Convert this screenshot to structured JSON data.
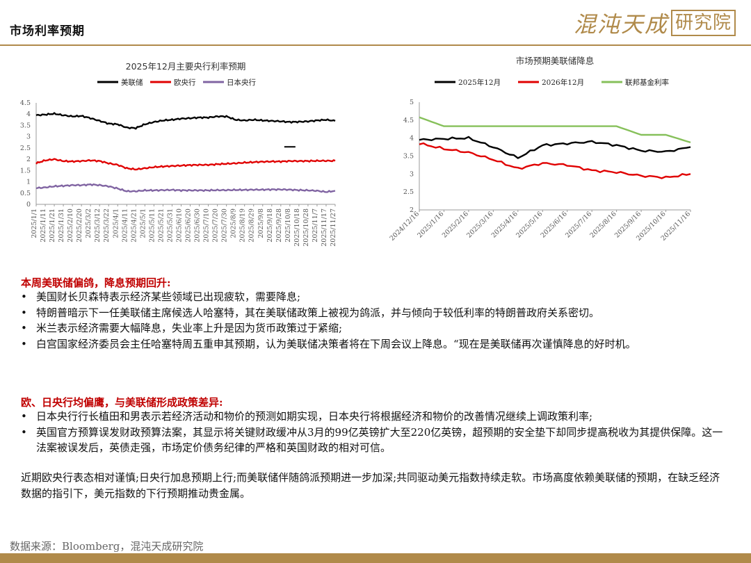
{
  "header": {
    "title": "市场利率预期"
  },
  "logo": {
    "text_script": "混沌天成",
    "text_seal": "研究院"
  },
  "chart_data": [
    {
      "type": "line",
      "title": "2025年12月主要央行利率预期",
      "ylim": [
        0,
        4.5
      ],
      "yticks": [
        "0",
        "0.5",
        "1",
        "1.5",
        "2",
        "2.5",
        "3",
        "3.5",
        "4",
        "4.5"
      ],
      "x": [
        "2025/1/1",
        "2025/1/11",
        "2025/1/21",
        "2025/1/31",
        "2025/2/10",
        "2025/2/20",
        "2025/3/2",
        "2025/3/12",
        "2025/3/22",
        "2025/4/1",
        "2025/4/11",
        "2025/4/21",
        "2025/5/1",
        "2025/5/11",
        "2025/5/21",
        "2025/5/31",
        "2025/6/10",
        "2025/6/20",
        "2025/6/30",
        "2025/7/10",
        "2025/7/20",
        "2025/7/30",
        "2025/8/9",
        "2025/8/19",
        "2025/8/29",
        "2025/9/8",
        "2025/9/18",
        "2025/9/28",
        "2025/10/8",
        "2025/10/18",
        "2025/10/28",
        "2025/11/7",
        "2025/11/17",
        "2025/11/27"
      ],
      "series": [
        {
          "name": "美联储",
          "color": "#000000",
          "values": [
            3.95,
            3.98,
            4.02,
            3.95,
            3.9,
            3.92,
            3.82,
            3.7,
            3.58,
            3.55,
            3.4,
            3.38,
            3.55,
            3.65,
            3.72,
            3.75,
            3.8,
            3.82,
            3.85,
            3.85,
            3.9,
            3.9,
            3.75,
            3.72,
            3.75,
            3.72,
            3.7,
            3.68,
            3.65,
            3.66,
            3.68,
            3.72,
            3.75,
            3.7
          ]
        },
        {
          "name": "欧央行",
          "color": "#e00000",
          "values": [
            1.82,
            1.95,
            2.0,
            1.92,
            1.9,
            1.92,
            1.95,
            1.92,
            1.82,
            1.75,
            1.6,
            1.55,
            1.6,
            1.65,
            1.68,
            1.7,
            1.72,
            1.74,
            1.75,
            1.75,
            1.78,
            1.8,
            1.82,
            1.85,
            1.87,
            1.89,
            1.9,
            1.9,
            1.92,
            1.92,
            1.92,
            1.93,
            1.93,
            1.93
          ]
        },
        {
          "name": "日本央行",
          "color": "#8064a2",
          "values": [
            0.72,
            0.75,
            0.8,
            0.82,
            0.85,
            0.85,
            0.88,
            0.85,
            0.8,
            0.7,
            0.58,
            0.58,
            0.62,
            0.62,
            0.63,
            0.64,
            0.62,
            0.62,
            0.62,
            0.62,
            0.63,
            0.63,
            0.64,
            0.64,
            0.65,
            0.65,
            0.66,
            0.66,
            0.65,
            0.63,
            0.62,
            0.6,
            0.55,
            0.6
          ]
        }
      ],
      "annotations": [
        {
          "type": "dash",
          "x": "2025/10/8",
          "y": 2.55
        }
      ]
    },
    {
      "type": "line",
      "title": "市场预期美联储降息",
      "ylim": [
        2,
        5
      ],
      "yticks": [
        "2",
        "2.5",
        "3",
        "3.5",
        "4",
        "4.5",
        "5"
      ],
      "x": [
        "2024/12/16",
        "2025/1/16",
        "2025/2/16",
        "2025/3/16",
        "2025/4/16",
        "2025/5/16",
        "2025/6/16",
        "2025/7/16",
        "2025/8/16",
        "2025/9/16",
        "2025/10/16",
        "2025/11/16"
      ],
      "series": [
        {
          "name": "2025年12月",
          "color": "#000000",
          "values": [
            3.95,
            3.98,
            4.0,
            3.75,
            3.45,
            3.8,
            3.85,
            3.9,
            3.8,
            3.65,
            3.62,
            3.75
          ]
        },
        {
          "name": "2026年12月",
          "color": "#e00000",
          "values": [
            3.85,
            3.7,
            3.6,
            3.4,
            3.15,
            3.3,
            3.25,
            3.1,
            3.05,
            2.95,
            2.9,
            3.0
          ]
        },
        {
          "name": "联邦基金利率",
          "color": "#86c05a",
          "values": [
            4.58,
            4.33,
            4.33,
            4.33,
            4.33,
            4.33,
            4.33,
            4.33,
            4.33,
            4.09,
            4.09,
            3.88
          ]
        }
      ]
    }
  ],
  "sections": [
    {
      "heading": "本周美联储偏鸽，降息预期回升:",
      "bullets": [
        "美国财长贝森特表示经济某些领域已出现疲软，需要降息;",
        "特朗普暗示下一任美联储主席候选人哈塞特，其在美联储政策上被视为鸽派，并与倾向于较低利率的特朗普政府关系密切。",
        "米兰表示经济需要大幅降息，失业率上升是因为货币政策过于紧缩;",
        "白宫国家经济委员会主任哈塞特周五重申其预期，认为美联储决策者将在下周会议上降息。“现在是美联储再次谨慎降息的好时机。"
      ]
    },
    {
      "heading": "欧、日央行均偏鹰，与美联储形成政策差异:",
      "bullets": [
        "日本央行行长植田和男表示若经济活动和物价的预测如期实现，日本央行将根据经济和物价的改善情况继续上调政策利率;",
        "英国官方预算误发财政预算法案，其显示将关键财政缓冲从3月的99亿英镑扩大至220亿英镑，超预期的安全垫下却同步提高税收为其提供保障。这一法案被误发后，英债走强，市场定价债务纪律的严格和英国财政的相对可信。"
      ]
    }
  ],
  "summary": "近期欧央行表态相对谨慎;日央行加息预期上行;而美联储伴随鸽派预期进一步加深;共同驱动美元指数持续走软。市场高度依赖美联储的预期，在缺乏经济数据的指引下，美元指数的下行预期推动贵金属。",
  "source": "数据来源：Bloomberg，混沌天成研究院",
  "colors": {
    "accent": "#b08a4a",
    "heading_red": "#c00000"
  }
}
